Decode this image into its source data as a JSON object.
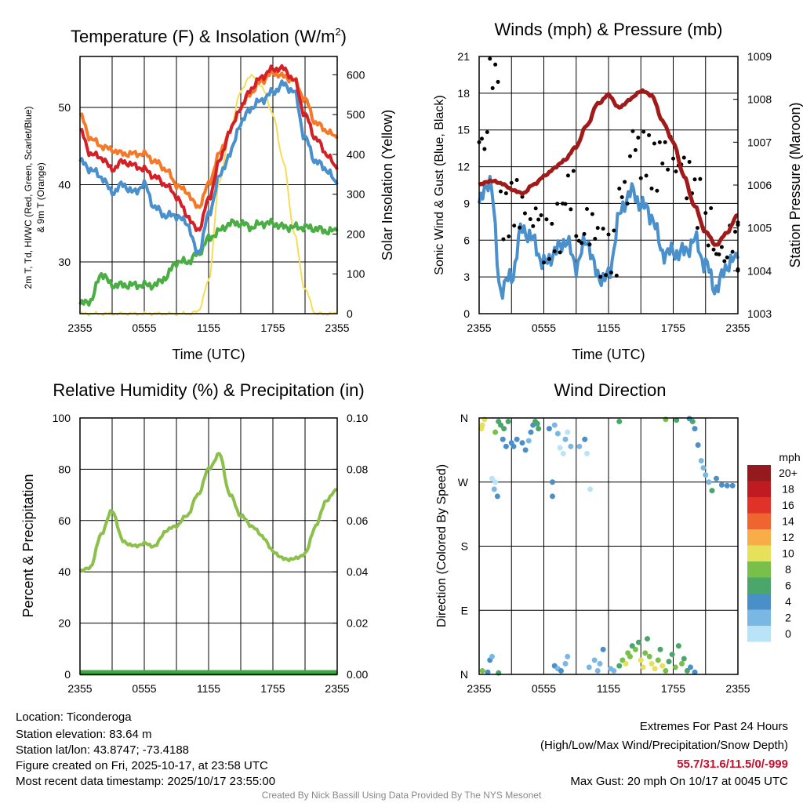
{
  "colors": {
    "red": "#d42027",
    "orange": "#f47a2a",
    "blue": "#4a90cc",
    "green": "#4aae45",
    "yellow": "#f5dd5a",
    "maroon": "#a11a1a",
    "rh": "#8cc04a",
    "precip": "#3da844"
  },
  "chart_data": [
    {
      "type": "line",
      "title": "Temperature (F) & Insolation (W/m²)",
      "xlabel": "Time (UTC)",
      "ylabel": "2m T, Td, HI/WC (Red, Green, Scarlet/Blue) & 9m T (Orange)",
      "ylabel_line1": "2m T, T",
      "ylabel_sub": "d",
      "ylabel_line1b": ", HI/WC (Red, Green, Scarlet/Blue)",
      "ylabel_line2": "& 9m T (Orange)",
      "y2label": "Solar Insolation (Yellow)",
      "ylim": [
        23.3,
        56.6
      ],
      "y2lim": [
        0,
        646
      ],
      "yticks": [
        30,
        40,
        50
      ],
      "y2ticks": [
        0,
        100,
        200,
        300,
        400,
        500,
        600
      ],
      "x": [
        0,
        1,
        2,
        3,
        4,
        5,
        6,
        7,
        8,
        9,
        10,
        11,
        12,
        13,
        14,
        15,
        16,
        17,
        18,
        19,
        20,
        21,
        22,
        23,
        24
      ],
      "series": [
        {
          "name": "9m T",
          "color": "orange",
          "values": [
            49,
            46,
            45,
            44.5,
            44,
            44,
            44,
            43,
            42,
            40,
            39,
            37,
            40,
            44,
            47,
            50,
            52,
            53.5,
            54.5,
            54,
            53.5,
            51,
            48,
            47,
            46
          ]
        },
        {
          "name": "2m T",
          "color": "red",
          "values": [
            47,
            44,
            43.5,
            42,
            43,
            42.5,
            42,
            41,
            40,
            38.5,
            36,
            34,
            38,
            43,
            47,
            50,
            52.5,
            54,
            55,
            55,
            53.5,
            49,
            46,
            44,
            42
          ]
        },
        {
          "name": "HI/WC",
          "color": "blue",
          "values": [
            43,
            42,
            41,
            39,
            40,
            39,
            40,
            37,
            36,
            36,
            35,
            31,
            36,
            41,
            44,
            48,
            50,
            51,
            52,
            53,
            52,
            46,
            43,
            42,
            40
          ]
        },
        {
          "name": "Td",
          "color": "green",
          "values": [
            24.5,
            25,
            28.5,
            27,
            27,
            27,
            27,
            27,
            28,
            30,
            30,
            31,
            33,
            34,
            35,
            35,
            34.5,
            35,
            35,
            34.5,
            34.5,
            34.5,
            34.3,
            34,
            34
          ]
        },
        {
          "name": "Solar",
          "color": "yellow",
          "axis": "right",
          "values": [
            0,
            0,
            0,
            0,
            0,
            0,
            0,
            0,
            0,
            0,
            0,
            5,
            80,
            330,
            460,
            560,
            600,
            570,
            500,
            380,
            200,
            60,
            0,
            0,
            0
          ]
        }
      ]
    },
    {
      "type": "line",
      "title": "Winds (mph) & Pressure (mb)",
      "xlabel": "Time (UTC)",
      "ylabel": "Sonic Wind & Gust (Blue, Black)",
      "y2label": "Station Pressure (Maroon)",
      "ylim": [
        0,
        21
      ],
      "y2lim": [
        1003,
        1009
      ],
      "yticks": [
        0,
        3,
        6,
        9,
        12,
        15,
        18,
        21
      ],
      "y2ticks": [
        1003,
        1004,
        1005,
        1006,
        1007,
        1008,
        1009
      ],
      "x": [
        0,
        1,
        2,
        3,
        4,
        5,
        6,
        7,
        8,
        9,
        10,
        11,
        12,
        13,
        14,
        15,
        16,
        17,
        18,
        19,
        20,
        21,
        22,
        23,
        24
      ],
      "series": [
        {
          "name": "Wind",
          "color": "blue",
          "values": [
            9,
            11,
            2,
            3,
            7,
            6,
            4,
            5,
            6,
            4,
            6,
            3,
            3,
            8,
            10,
            9,
            8,
            5,
            5,
            5,
            6,
            4,
            2,
            4,
            4.5
          ]
        },
        {
          "name": "Gust",
          "color": "black",
          "type": "scatter",
          "values": [
            14,
            19.5,
            8,
            9,
            9,
            8,
            6,
            7,
            10,
            6,
            7,
            5,
            5,
            10,
            14,
            13,
            12,
            13,
            12,
            11,
            9,
            7,
            5,
            6,
            5.5
          ]
        },
        {
          "name": "Pressure",
          "color": "maroon",
          "axis": "right",
          "values": [
            1006,
            1006.1,
            1006.05,
            1005.9,
            1005.8,
            1006,
            1006.2,
            1006.4,
            1006.6,
            1006.9,
            1007.4,
            1007.9,
            1008.1,
            1007.8,
            1008,
            1008.2,
            1008.1,
            1007.5,
            1007,
            1006.2,
            1005.5,
            1004.9,
            1004.6,
            1004.9,
            1005.3
          ]
        }
      ]
    },
    {
      "type": "line",
      "title": "Relative Humidity (%) & Precipitation (in)",
      "ylabel": "Percent & Precipitation",
      "ylim": [
        0,
        100
      ],
      "y2lim": [
        0,
        0.1
      ],
      "yticks": [
        0,
        20,
        40,
        60,
        80,
        100
      ],
      "y2ticks": [
        "0.00",
        "0.02",
        "0.04",
        "0.06",
        "0.08",
        "0.10"
      ],
      "x": [
        0,
        1,
        2,
        3,
        4,
        5,
        6,
        7,
        8,
        9,
        10,
        11,
        12,
        13,
        14,
        15,
        16,
        17,
        18,
        19,
        20,
        21,
        22,
        23,
        24
      ],
      "series": [
        {
          "name": "RH",
          "color": "rh",
          "values": [
            40,
            42,
            55,
            64,
            52,
            50,
            51,
            50,
            56,
            58,
            62,
            70,
            80,
            86,
            70,
            62,
            58,
            54,
            48,
            45,
            45,
            47,
            58,
            68,
            72
          ]
        },
        {
          "name": "Precipitation",
          "color": "precip",
          "axis": "right",
          "values": [
            0,
            0,
            0,
            0,
            0,
            0,
            0,
            0,
            0,
            0,
            0,
            0,
            0,
            0,
            0,
            0,
            0,
            0,
            0,
            0,
            0,
            0,
            0,
            0,
            0
          ]
        }
      ]
    },
    {
      "type": "scatter",
      "title": "Wind Direction",
      "ylabel": "Direction (Colored By Speed)",
      "yticks": [
        "N",
        "E",
        "S",
        "W",
        "N"
      ],
      "colorbar_title": "mph",
      "colorbar_labels": [
        "0",
        "2",
        "4",
        "6",
        "8",
        "10",
        "12",
        "14",
        "16",
        "18",
        "20+"
      ],
      "colorbar_colors": [
        "#b9e3f7",
        "#7ab8e3",
        "#4a8fc7",
        "#4aa66a",
        "#78c04a",
        "#e6e05a",
        "#f8ae48",
        "#f06430",
        "#e03228",
        "#c01b22",
        "#951a1d"
      ],
      "points": [
        [
          0.2,
          345,
          10
        ],
        [
          0.3,
          350,
          10
        ],
        [
          0.5,
          358,
          10
        ],
        [
          0.3,
          5,
          9
        ],
        [
          0.8,
          3,
          4
        ],
        [
          1,
          20,
          4
        ],
        [
          1.2,
          25,
          3
        ],
        [
          1.5,
          340,
          8
        ],
        [
          1.8,
          355,
          6
        ],
        [
          2,
          350,
          6
        ],
        [
          2.2,
          330,
          4
        ],
        [
          2.5,
          320,
          4
        ],
        [
          2.3,
          345,
          6
        ],
        [
          2.7,
          355,
          7
        ],
        [
          1.2,
          275,
          1
        ],
        [
          1.5,
          270,
          1
        ],
        [
          1.4,
          260,
          3
        ],
        [
          1.7,
          250,
          4
        ],
        [
          1.8,
          2,
          6
        ],
        [
          3,
          325,
          4
        ],
        [
          3.2,
          320,
          4
        ],
        [
          3.5,
          330,
          4
        ],
        [
          4,
          325,
          4
        ],
        [
          4.3,
          315,
          4
        ],
        [
          4.6,
          328,
          2
        ],
        [
          4.8,
          340,
          4
        ],
        [
          5,
          350,
          5
        ],
        [
          5.2,
          355,
          6
        ],
        [
          5.4,
          352,
          7
        ],
        [
          5.5,
          345,
          6
        ],
        [
          6.5,
          345,
          4
        ],
        [
          7,
          350,
          3
        ],
        [
          7.3,
          338,
          3
        ],
        [
          7.5,
          318,
          1
        ],
        [
          8,
          330,
          2
        ],
        [
          8.2,
          340,
          1
        ],
        [
          8.5,
          320,
          2
        ],
        [
          7.8,
          310,
          1
        ],
        [
          6.8,
          270,
          4
        ],
        [
          6.8,
          250,
          4
        ],
        [
          7,
          12,
          4
        ],
        [
          7.3,
          8,
          3
        ],
        [
          7.6,
          5,
          4
        ],
        [
          8,
          15,
          2
        ],
        [
          8.2,
          25,
          2
        ],
        [
          9.3,
          320,
          3
        ],
        [
          9.8,
          330,
          4
        ],
        [
          10,
          310,
          1
        ],
        [
          10.3,
          260,
          1
        ],
        [
          10.2,
          10,
          3
        ],
        [
          10.7,
          20,
          3
        ],
        [
          11,
          5,
          2
        ],
        [
          11.5,
          35,
          4
        ],
        [
          11.2,
          15,
          3
        ],
        [
          12.2,
          8,
          2
        ],
        [
          12.5,
          5,
          3
        ],
        [
          13,
          12,
          6
        ],
        [
          13.3,
          20,
          8
        ],
        [
          13.6,
          15,
          10
        ],
        [
          13.8,
          30,
          9
        ],
        [
          14,
          25,
          8
        ],
        [
          14.2,
          40,
          7
        ],
        [
          14.5,
          35,
          9
        ],
        [
          14.8,
          45,
          6
        ],
        [
          15,
          20,
          10
        ],
        [
          15.2,
          10,
          11
        ],
        [
          15.4,
          30,
          8
        ],
        [
          15.6,
          50,
          6
        ],
        [
          15.8,
          25,
          9
        ],
        [
          16,
          15,
          10
        ],
        [
          16.3,
          8,
          11
        ],
        [
          16.6,
          20,
          8
        ],
        [
          16.8,
          35,
          6
        ],
        [
          17,
          12,
          10
        ],
        [
          17.3,
          5,
          9
        ],
        [
          17.6,
          18,
          7
        ],
        [
          17.9,
          28,
          6
        ],
        [
          18.2,
          10,
          8
        ],
        [
          18.5,
          40,
          6
        ],
        [
          18.8,
          15,
          8
        ],
        [
          19,
          22,
          6
        ],
        [
          19.3,
          5,
          7
        ],
        [
          19.6,
          10,
          5
        ],
        [
          20,
          3,
          4
        ],
        [
          13,
          355,
          7
        ],
        [
          17.3,
          358,
          8
        ],
        [
          18.3,
          357,
          6
        ],
        [
          19.5,
          359,
          5
        ],
        [
          19.8,
          355,
          6
        ],
        [
          20,
          345,
          4
        ],
        [
          20.3,
          322,
          4
        ],
        [
          20.6,
          300,
          3
        ],
        [
          20.8,
          290,
          2
        ],
        [
          21,
          280,
          3
        ],
        [
          21.3,
          270,
          3
        ],
        [
          21.6,
          258,
          6
        ],
        [
          22,
          275,
          4
        ],
        [
          22.5,
          266,
          4
        ],
        [
          23,
          265,
          4
        ],
        [
          23.5,
          265,
          4
        ]
      ]
    }
  ],
  "xticks": [
    "2355",
    "0555",
    "1155",
    "1755",
    "2355"
  ],
  "info": {
    "location": "Location: Ticonderoga",
    "elevation": "Station elevation: 83.64 m",
    "latlon": "Station lat/lon: 43.8747; -73.4188",
    "created": "Figure created on Fri, 2025-10-17, at 23:58 UTC",
    "recent": "Most recent data timestamp: 2025/10/17 23:55:00"
  },
  "extremes": {
    "title": "Extremes For Past 24 Hours",
    "subtitle": "(High/Low/Max Wind/Precipitation/Snow Depth)",
    "values": "55.7/31.6/11.5/0/-999",
    "gust": "Max Gust: 20 mph On 10/17 at 0045 UTC"
  },
  "credit": "Created By Nick Bassill Using Data Provided By The NYS Mesonet"
}
